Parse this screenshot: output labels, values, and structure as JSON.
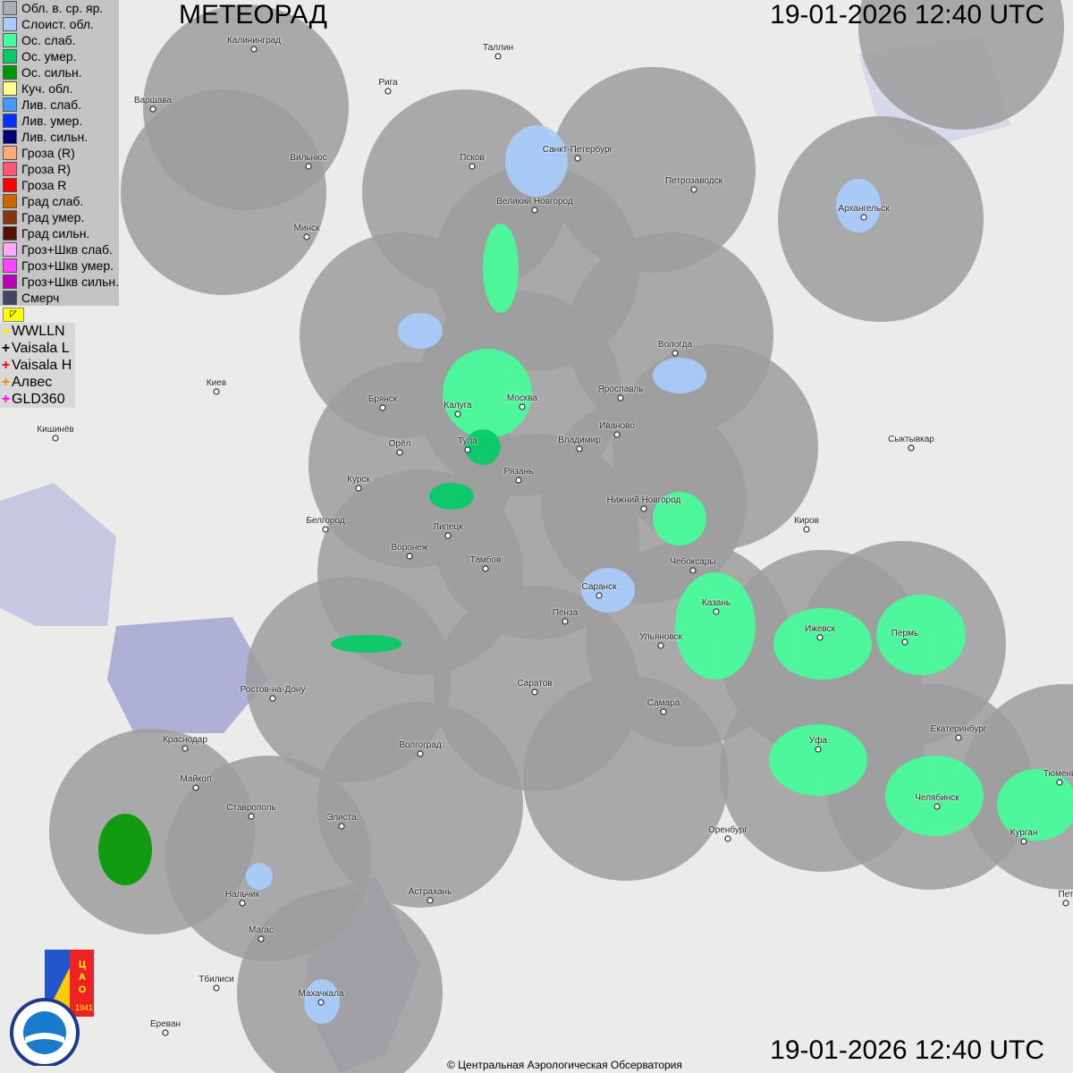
{
  "header": {
    "title": "МЕТЕОРАД",
    "timestamp": "19-01-2026  12:40 UTC"
  },
  "legend": [
    {
      "label": "Обл. в. ср. яр.",
      "color": "#a9b0b4"
    },
    {
      "label": "Слоист. обл.",
      "color": "#a8ccff"
    },
    {
      "label": "Ос. слаб.",
      "color": "#44ff99"
    },
    {
      "label": "Ос. умер.",
      "color": "#00cc66"
    },
    {
      "label": "Ос. сильн.",
      "color": "#009900"
    },
    {
      "label": "Куч. обл.",
      "color": "#ffff88"
    },
    {
      "label": "Лив. слаб.",
      "color": "#4499ff"
    },
    {
      "label": "Лив. умер.",
      "color": "#0033ff"
    },
    {
      "label": "Лив. сильн.",
      "color": "#000077"
    },
    {
      "label": "Гроза (R)",
      "color": "#ffaa77"
    },
    {
      "label": "Гроза R)",
      "color": "#ff5577"
    },
    {
      "label": "Гроза R",
      "color": "#ff0000"
    },
    {
      "label": "Град слаб.",
      "color": "#cc6600"
    },
    {
      "label": "Град умер.",
      "color": "#883311"
    },
    {
      "label": "Град сильн.",
      "color": "#551100"
    },
    {
      "label": "Гроз+Шкв слаб.",
      "color": "#ffaaff"
    },
    {
      "label": "Гроз+Шкв умер.",
      "color": "#ff44ff"
    },
    {
      "label": "Гроз+Шкв сильн.",
      "color": "#bb00bb"
    },
    {
      "label": "Смерч",
      "color": "#444466"
    }
  ],
  "lightning_toggle_icon": "arrow-flag-icon",
  "lightning_sources": [
    {
      "label": "WWLLN",
      "color": "#ffee00"
    },
    {
      "label": "Vaisala L",
      "color": "#000000"
    },
    {
      "label": "Vaisala H",
      "color": "#ff0000"
    },
    {
      "label": "Алвес",
      "color": "#ff8800"
    },
    {
      "label": "GLD360",
      "color": "#ff00ff"
    }
  ],
  "cities": [
    "Калининград",
    "Таллин",
    "Рига",
    "Варшава",
    "Санкт-Петербург",
    "Псков",
    "Вильнюс",
    "Петрозаводск",
    "Великий Новгород",
    "Архангельск",
    "Минск",
    "Вологда",
    "Киев",
    "Брянск",
    "Москва",
    "Калуга",
    "Ярославль",
    "Иваново",
    "Кишинёв",
    "Орёл",
    "Тула",
    "Владимир",
    "Сыктывкар",
    "Рязань",
    "Курск",
    "Нижний Новгород",
    "Белгород",
    "Липецк",
    "Киров",
    "Воронеж",
    "Тамбов",
    "Чебоксары",
    "Саранск",
    "Пенза",
    "Казань",
    "Ижевск",
    "Пермь",
    "Ульяновск",
    "Ростов-на-Дону",
    "Саратов",
    "Самара",
    "Краснодар",
    "Уфа",
    "Волгоград",
    "Екатеринбург",
    "Майкоп",
    "Челябинск",
    "Тюмень",
    "Ставрополь",
    "Элиста",
    "Оренбург",
    "Курган",
    "Астрахань",
    "Нальчик",
    "Пет",
    "Магас",
    "Махачкала",
    "Тбилиси",
    "Ереван"
  ],
  "logos": {
    "cao": "ЦАО 1941",
    "roshydromet": "РОСГИДРОМЕТ ROSHYDROMET"
  },
  "copyright": "© Центральная Аэрологическая Обсерватория",
  "colors": {
    "radar_coverage": "#a0a0a0",
    "land": "#ebebea",
    "water": "#aeb0d6"
  }
}
